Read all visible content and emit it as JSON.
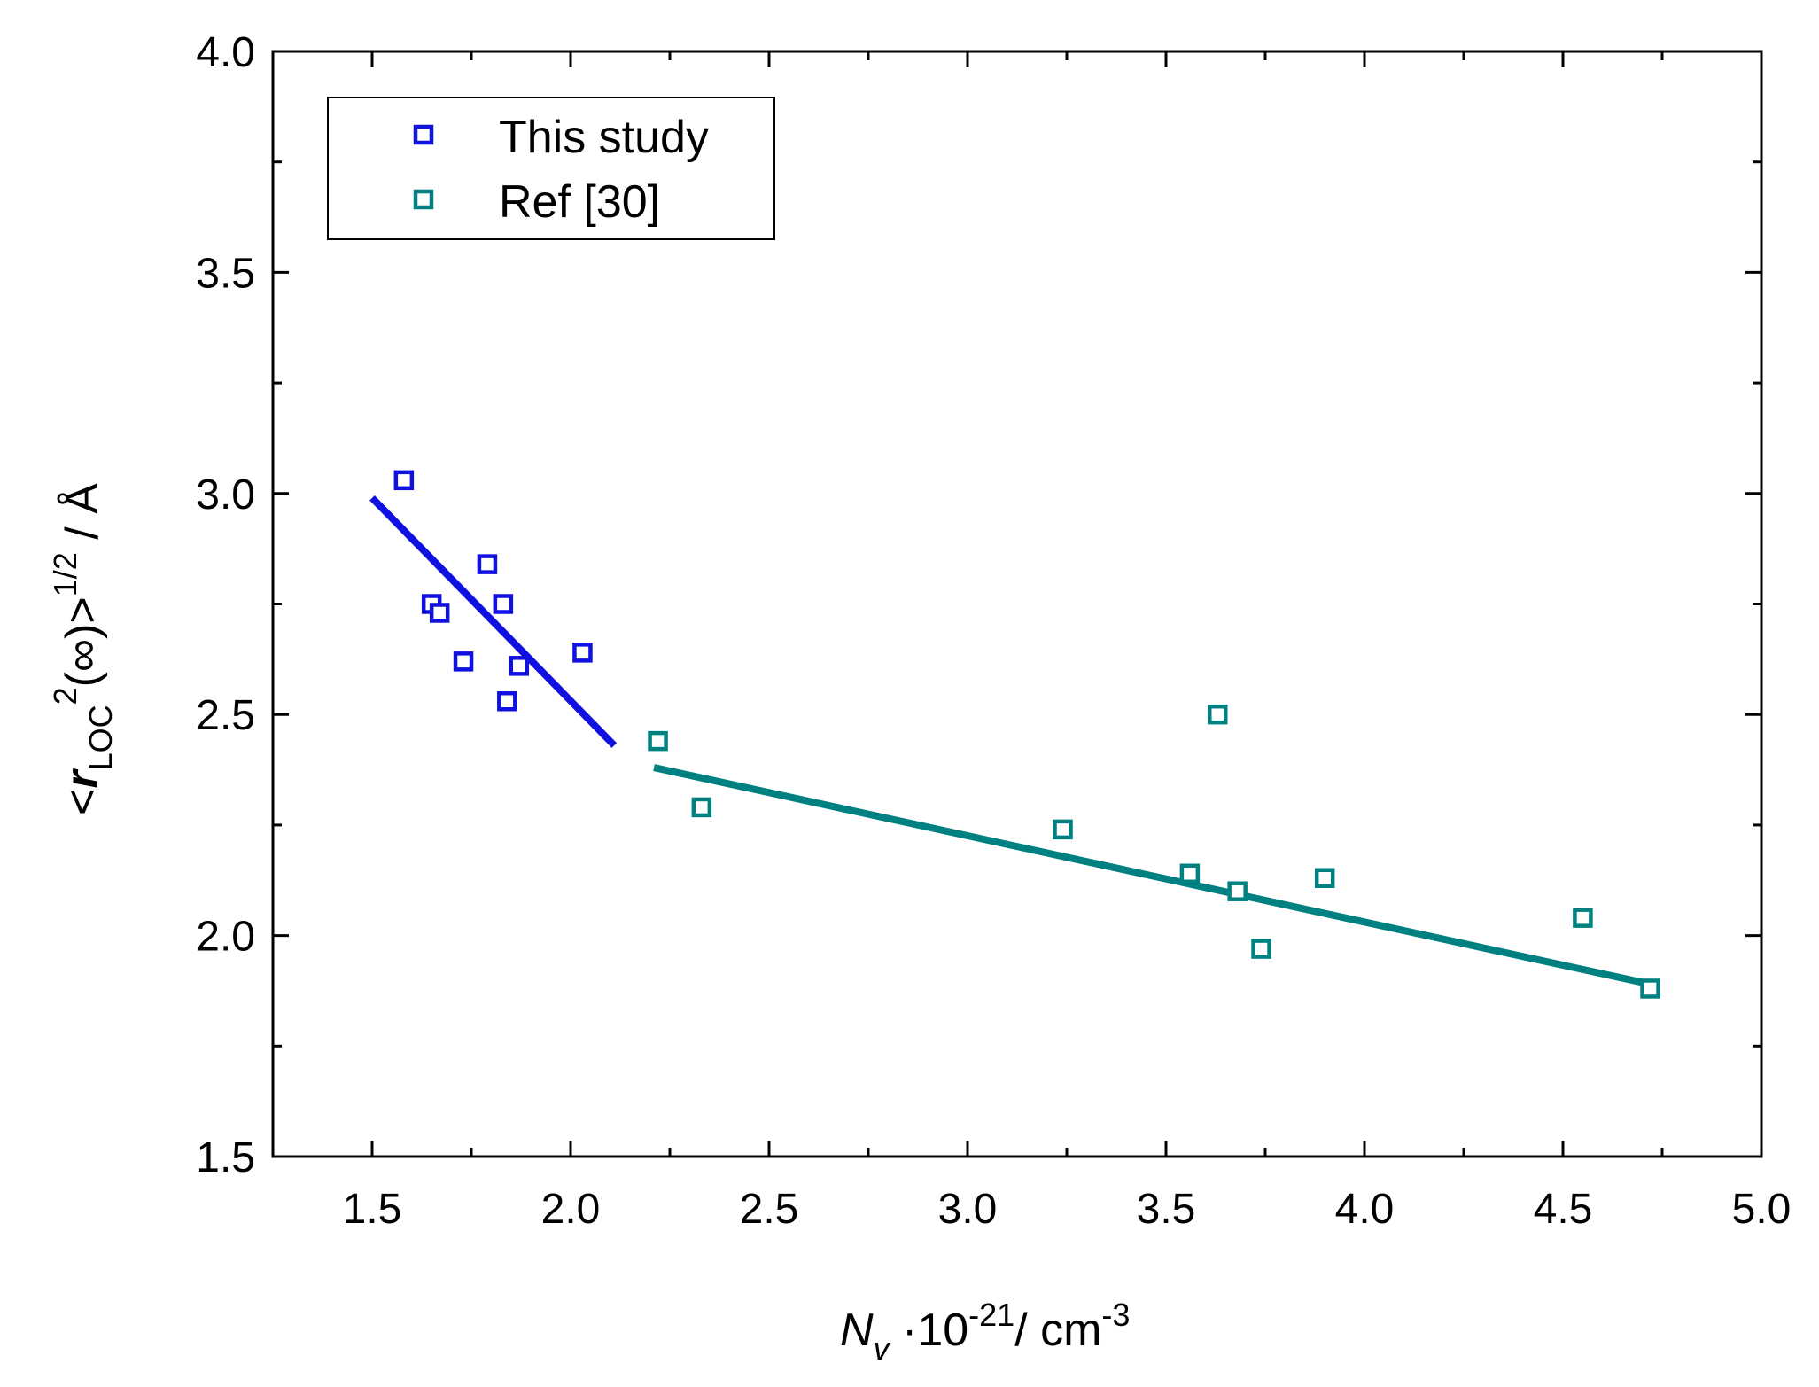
{
  "chart_data": {
    "type": "scatter",
    "title": "",
    "x_axis": {
      "var": "N",
      "sub": "v",
      "factor": " ·10",
      "exp": "-21",
      "unit": "/ cm",
      "unit_exp": "-3",
      "range": [
        1.25,
        5.0
      ],
      "ticks": [
        "1.5",
        "2.0",
        "2.5",
        "3.0",
        "3.5",
        "4.0",
        "4.5",
        "5.0"
      ],
      "tick_values": [
        1.5,
        2.0,
        2.5,
        3.0,
        3.5,
        4.0,
        4.5,
        5.0
      ]
    },
    "y_axis": {
      "open": "<",
      "var": "r",
      "sub": "LOC",
      "sup": "2",
      "arg": "(∞)>",
      "exp": "1/2",
      "unit": " / Å",
      "range": [
        1.5,
        4.0
      ],
      "ticks": [
        "1.5",
        "2.0",
        "2.5",
        "3.0",
        "3.5",
        "4.0"
      ],
      "tick_values": [
        1.5,
        2.0,
        2.5,
        3.0,
        3.5,
        4.0
      ]
    },
    "legend_position": "top-left",
    "series": [
      {
        "name": "This study",
        "color": "#1010e0",
        "marker": "open-square",
        "points": [
          [
            1.58,
            3.03
          ],
          [
            1.65,
            2.75
          ],
          [
            1.67,
            2.73
          ],
          [
            1.73,
            2.62
          ],
          [
            1.79,
            2.84
          ],
          [
            1.83,
            2.75
          ],
          [
            1.84,
            2.53
          ],
          [
            1.87,
            2.61
          ],
          [
            2.03,
            2.64
          ]
        ],
        "fit": [
          [
            1.5,
            2.99
          ],
          [
            2.11,
            2.43
          ]
        ]
      },
      {
        "name": "Ref [30]",
        "color": "#008080",
        "marker": "open-square",
        "points": [
          [
            2.22,
            2.44
          ],
          [
            2.33,
            2.29
          ],
          [
            3.24,
            2.24
          ],
          [
            3.56,
            2.14
          ],
          [
            3.63,
            2.5
          ],
          [
            3.68,
            2.1
          ],
          [
            3.74,
            1.97
          ],
          [
            3.9,
            2.13
          ],
          [
            4.55,
            2.04
          ],
          [
            4.72,
            1.88
          ]
        ],
        "fit": [
          [
            2.21,
            2.38
          ],
          [
            4.72,
            1.89
          ]
        ]
      }
    ]
  }
}
